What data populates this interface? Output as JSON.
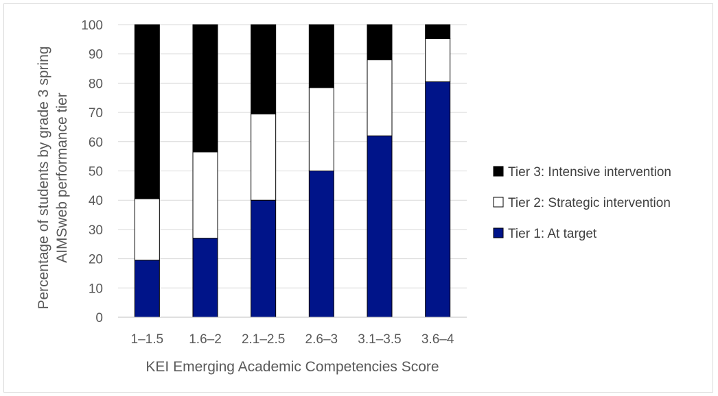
{
  "chart_data": {
    "type": "bar",
    "stacked": true,
    "categories": [
      "1–1.5",
      "1.6–2",
      "2.1–2.5",
      "2.6–3",
      "3.1–3.5",
      "3.6–4"
    ],
    "series": [
      {
        "name": "Tier 1: At target",
        "color": "#001489",
        "values": [
          19.5,
          27,
          40,
          50,
          62,
          80.5
        ]
      },
      {
        "name": "Tier 2: Strategic intervention",
        "color": "#ffffff",
        "values": [
          21,
          29.5,
          29.5,
          28.5,
          26,
          14.7
        ]
      },
      {
        "name": "Tier 3: Intensive intervention",
        "color": "#000000",
        "values": [
          59.5,
          43.5,
          30.5,
          21.5,
          12,
          4.8
        ]
      }
    ],
    "legend_order": [
      2,
      1,
      0
    ],
    "legend_position": "right",
    "ylim": [
      0,
      100
    ],
    "yticks": [
      "0",
      "10",
      "20",
      "30",
      "40",
      "50",
      "60",
      "70",
      "80",
      "90",
      "100"
    ],
    "xlabel": "KEI Emerging Academic Competencies Score",
    "ylabel_line1": "Percentage of students by grade 3 spring",
    "ylabel_line2": "AIMSweb performance tier",
    "grid": true
  }
}
